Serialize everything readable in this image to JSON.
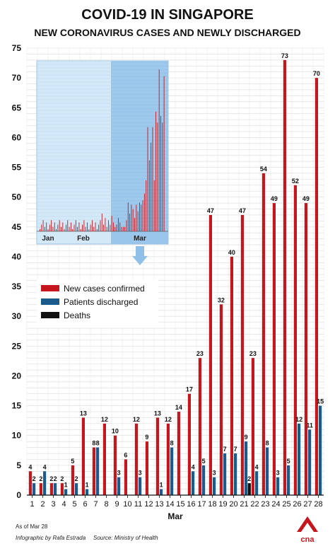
{
  "chart_data": {
    "type": "bar",
    "title": "COVID-19 IN SINGAPORE",
    "subtitle": "NEW CORONAVIRUS CASES AND NEWLY DISCHARGED",
    "xlabel": "Mar",
    "ylabel": "",
    "ylim": [
      0,
      75
    ],
    "yticks": [
      0,
      5,
      10,
      15,
      20,
      25,
      30,
      35,
      40,
      45,
      50,
      55,
      60,
      65,
      70,
      75
    ],
    "grid": true,
    "legend_position": "middle-left",
    "categories": [
      "1",
      "2",
      "3",
      "4",
      "5",
      "6",
      "7",
      "8",
      "9",
      "10",
      "11",
      "12",
      "13",
      "14",
      "15",
      "16",
      "17",
      "18",
      "19",
      "20",
      "21",
      "22",
      "23",
      "24",
      "25",
      "26",
      "27",
      "28"
    ],
    "series": [
      {
        "name": "New cases confirmed",
        "color": "#c4161c",
        "values": [
          4,
          2,
          2,
          2,
          5,
          13,
          8,
          12,
          10,
          6,
          12,
          9,
          13,
          12,
          14,
          17,
          23,
          47,
          32,
          40,
          47,
          23,
          54,
          49,
          73,
          52,
          49,
          70
        ]
      },
      {
        "name": "Patients discharged",
        "color": "#1a5b8c",
        "values": [
          2,
          4,
          2,
          1,
          2,
          1,
          8,
          0,
          3,
          0,
          3,
          0,
          1,
          8,
          0,
          4,
          5,
          3,
          7,
          7,
          9,
          4,
          8,
          3,
          5,
          12,
          11,
          15
        ]
      },
      {
        "name": "Deaths",
        "color": "#111111",
        "values": [
          0,
          0,
          0,
          0,
          0,
          0,
          0,
          0,
          0,
          0,
          0,
          0,
          0,
          0,
          0,
          0,
          0,
          0,
          0,
          0,
          2,
          0,
          0,
          0,
          0,
          0,
          0,
          0
        ]
      }
    ],
    "inset": {
      "month_labels": [
        "Jan",
        "Feb",
        "Mar"
      ]
    }
  },
  "footer": {
    "as_of": "As of Mar 28",
    "credit": "Infographic by Rafa Estrada",
    "source": "Source: Ministry of Health",
    "logo_text": "cna"
  }
}
